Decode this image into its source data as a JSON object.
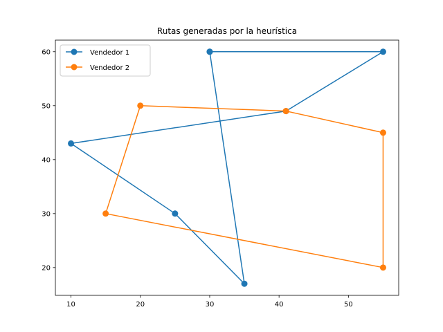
{
  "chart_data": {
    "type": "line",
    "title": "Rutas generadas por la heurística",
    "xlabel": "",
    "ylabel": "",
    "xlim": [
      7.75,
      57.25
    ],
    "ylim": [
      14.85,
      62.15
    ],
    "xticks": [
      10,
      20,
      30,
      40,
      50
    ],
    "yticks": [
      20,
      30,
      40,
      50,
      60
    ],
    "grid": false,
    "legend_position": "top-left",
    "series": [
      {
        "name": "Vendedor 1",
        "color": "#1f77b4",
        "marker": "circle",
        "x": [
          30,
          55,
          41,
          10,
          25,
          35,
          30
        ],
        "y": [
          60,
          60,
          49,
          43,
          30,
          17,
          60
        ]
      },
      {
        "name": "Vendedor 2",
        "color": "#ff7f0e",
        "marker": "circle",
        "x": [
          41,
          55,
          55,
          15,
          20,
          41
        ],
        "y": [
          49,
          45,
          20,
          30,
          50,
          49
        ]
      }
    ]
  }
}
